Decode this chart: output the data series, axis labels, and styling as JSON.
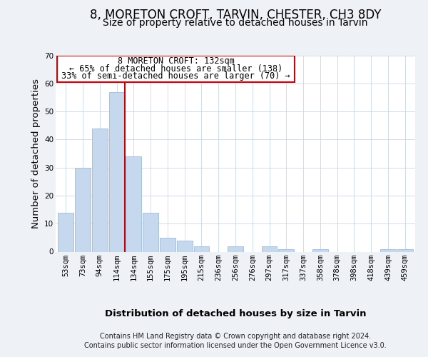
{
  "title": "8, MORETON CROFT, TARVIN, CHESTER, CH3 8DY",
  "subtitle": "Size of property relative to detached houses in Tarvin",
  "xlabel": "Distribution of detached houses by size in Tarvin",
  "ylabel": "Number of detached properties",
  "bar_labels": [
    "53sqm",
    "73sqm",
    "94sqm",
    "114sqm",
    "134sqm",
    "155sqm",
    "175sqm",
    "195sqm",
    "215sqm",
    "236sqm",
    "256sqm",
    "276sqm",
    "297sqm",
    "317sqm",
    "337sqm",
    "358sqm",
    "378sqm",
    "398sqm",
    "418sqm",
    "439sqm",
    "459sqm"
  ],
  "bar_values": [
    14,
    30,
    44,
    57,
    34,
    14,
    5,
    4,
    2,
    0,
    2,
    0,
    2,
    1,
    0,
    1,
    0,
    0,
    0,
    1,
    1
  ],
  "bar_color": "#c5d8ed",
  "bar_edgecolor": "#a0bcd8",
  "vline_color": "#cc0000",
  "ylim": [
    0,
    70
  ],
  "yticks": [
    0,
    10,
    20,
    30,
    40,
    50,
    60,
    70
  ],
  "annotation_line1": "8 MORETON CROFT: 132sqm",
  "annotation_line2": "← 65% of detached houses are smaller (138)",
  "annotation_line3": "33% of semi-detached houses are larger (70) →",
  "annotation_box_color": "#ffffff",
  "annotation_border_color": "#cc0000",
  "footer_line1": "Contains HM Land Registry data © Crown copyright and database right 2024.",
  "footer_line2": "Contains public sector information licensed under the Open Government Licence v3.0.",
  "background_color": "#eef2f7",
  "plot_background": "#ffffff",
  "grid_color": "#c8d8e8",
  "title_fontsize": 12,
  "subtitle_fontsize": 10,
  "axis_label_fontsize": 9.5,
  "tick_fontsize": 7.5,
  "footer_fontsize": 7,
  "annotation_fontsize": 8.5
}
